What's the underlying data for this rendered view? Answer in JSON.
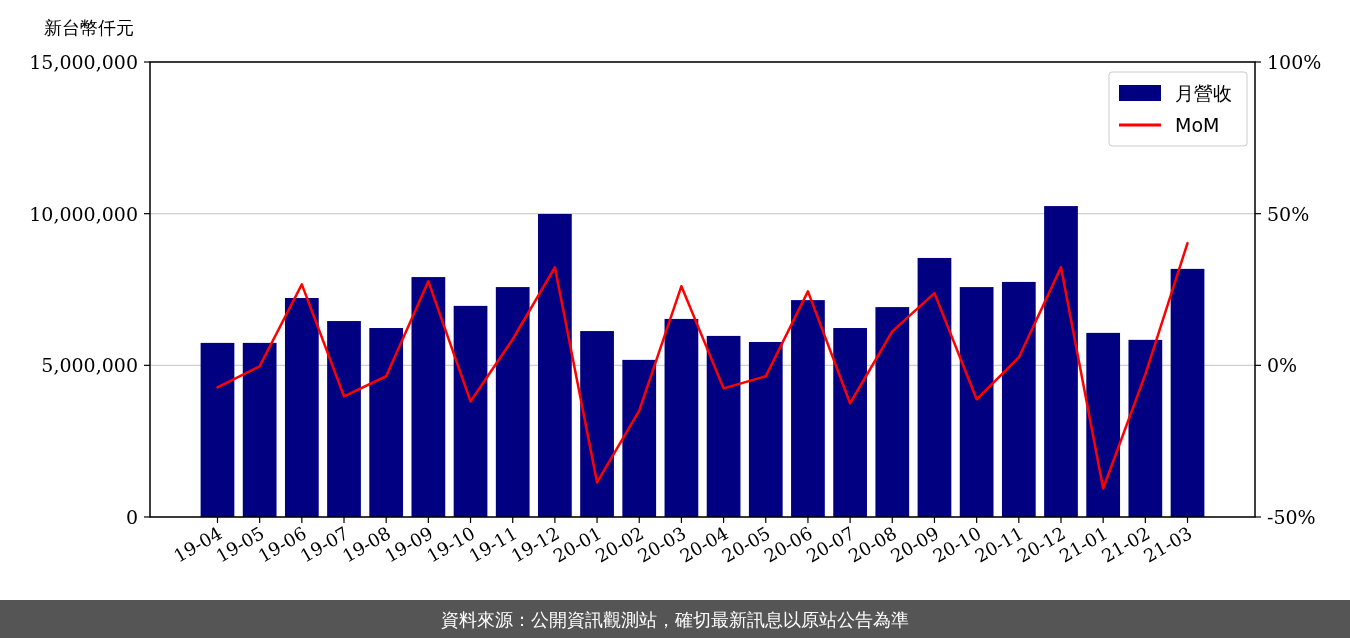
{
  "chart_data": {
    "type": "bar",
    "ylabel": "新台幣仟元",
    "categories": [
      "19-04",
      "19-05",
      "19-06",
      "19-07",
      "19-08",
      "19-09",
      "19-10",
      "19-11",
      "19-12",
      "20-01",
      "20-02",
      "20-03",
      "20-04",
      "20-05",
      "20-06",
      "20-07",
      "20-08",
      "20-09",
      "20-10",
      "20-11",
      "20-12",
      "21-01",
      "21-02",
      "21-03"
    ],
    "series": [
      {
        "name": "月營收",
        "color": "#000080",
        "values": [
          5740000,
          5740000,
          7220000,
          6460000,
          6230000,
          7910000,
          6960000,
          7580000,
          9990000,
          6130000,
          5180000,
          6530000,
          5970000,
          5770000,
          7150000,
          6230000,
          6920000,
          8540000,
          7580000,
          7750000,
          10250000,
          6070000,
          5840000,
          8180000
        ]
      },
      {
        "name": "MoM",
        "type": "line",
        "axis": "y2",
        "color": "#ff0000",
        "values": [
          -7.3,
          -0.3,
          26.7,
          -10.2,
          -3.6,
          27.7,
          -11.9,
          8.6,
          32.3,
          -38.6,
          -14.9,
          26.1,
          -7.6,
          -3.6,
          24.4,
          -12.5,
          11.2,
          23.8,
          -11.2,
          2.6,
          32.3,
          -40.6,
          -3.0,
          40.3
        ]
      }
    ],
    "ylim": [
      0,
      15000000
    ],
    "yticks": [
      {
        "value": 0,
        "label": "0"
      },
      {
        "value": 5000000,
        "label": "5,000,000"
      },
      {
        "value": 10000000,
        "label": "10,000,000"
      },
      {
        "value": 15000000,
        "label": "15,000,000"
      }
    ],
    "y2lim": [
      -50,
      100
    ],
    "y2ticks": [
      {
        "value": -50,
        "label": "-50%"
      },
      {
        "value": 0,
        "label": "0%"
      },
      {
        "value": 50,
        "label": "50%"
      },
      {
        "value": 100,
        "label": "100%"
      }
    ],
    "grid": "y",
    "legend": "top right",
    "annotations": [
      "資料來源：公開資訊觀測站，確切最新訊息以原站公告為準"
    ]
  }
}
